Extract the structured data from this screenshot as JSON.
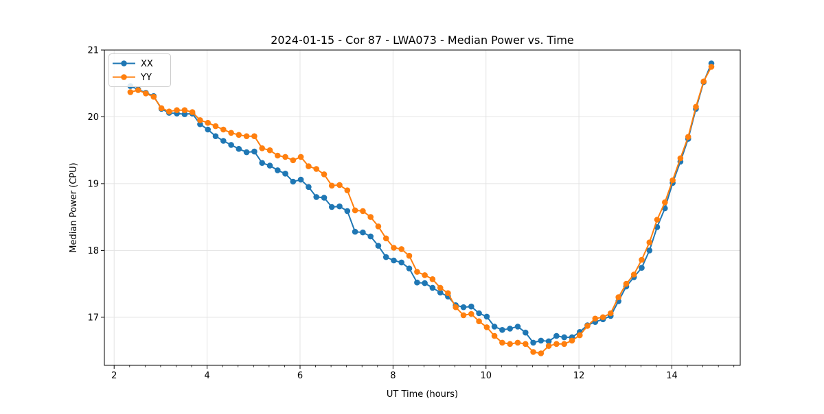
{
  "chart_data": {
    "type": "line",
    "title": "2024-01-15 - Cor 87 - LWA073 - Median Power vs. Time",
    "xlabel": "UT Time (hours)",
    "ylabel": "Median Power (CPU)",
    "xlim": [
      1.79,
      15.47
    ],
    "ylim": [
      16.28,
      21.0
    ],
    "x_ticks": [
      2,
      4,
      6,
      8,
      10,
      12,
      14
    ],
    "x_minor_step": 0.33333,
    "y_ticks": [
      17,
      18,
      19,
      20,
      21
    ],
    "grid": true,
    "grid_color": "#e3e3e3",
    "legend_position": "upper-left",
    "x": [
      2.35,
      2.517,
      2.683,
      2.85,
      3.017,
      3.183,
      3.35,
      3.517,
      3.683,
      3.85,
      4.017,
      4.183,
      4.35,
      4.517,
      4.683,
      4.85,
      5.017,
      5.183,
      5.35,
      5.517,
      5.683,
      5.85,
      6.017,
      6.183,
      6.35,
      6.517,
      6.683,
      6.85,
      7.017,
      7.183,
      7.35,
      7.517,
      7.683,
      7.85,
      8.017,
      8.183,
      8.35,
      8.517,
      8.683,
      8.85,
      9.017,
      9.183,
      9.35,
      9.517,
      9.683,
      9.85,
      10.017,
      10.183,
      10.35,
      10.517,
      10.683,
      10.85,
      11.017,
      11.183,
      11.35,
      11.517,
      11.683,
      11.85,
      12.017,
      12.183,
      12.35,
      12.517,
      12.683,
      12.85,
      13.017,
      13.183,
      13.35,
      13.517,
      13.683,
      13.85,
      14.017,
      14.183,
      14.35,
      14.517,
      14.683,
      14.85
    ],
    "series": [
      {
        "name": "XX",
        "color": "#1f77b4",
        "values": [
          20.46,
          20.41,
          20.36,
          20.31,
          20.12,
          20.06,
          20.05,
          20.04,
          20.05,
          19.89,
          19.81,
          19.71,
          19.64,
          19.58,
          19.52,
          19.47,
          19.48,
          19.31,
          19.27,
          19.2,
          19.15,
          19.03,
          19.06,
          18.95,
          18.8,
          18.79,
          18.65,
          18.66,
          18.59,
          18.28,
          18.27,
          18.21,
          18.07,
          17.9,
          17.85,
          17.82,
          17.73,
          17.52,
          17.51,
          17.44,
          17.37,
          17.31,
          17.18,
          17.15,
          17.16,
          17.06,
          17.01,
          16.86,
          16.81,
          16.83,
          16.86,
          16.77,
          16.62,
          16.65,
          16.64,
          16.72,
          16.7,
          16.7,
          16.78,
          16.88,
          16.93,
          16.97,
          17.02,
          17.24,
          17.46,
          17.6,
          17.74,
          18.0,
          18.35,
          18.63,
          19.01,
          19.33,
          19.67,
          20.12,
          20.52,
          20.8
        ]
      },
      {
        "name": "YY",
        "color": "#ff7f0e",
        "values": [
          20.37,
          20.4,
          20.35,
          20.3,
          20.13,
          20.08,
          20.1,
          20.1,
          20.07,
          19.95,
          19.91,
          19.86,
          19.81,
          19.76,
          19.73,
          19.71,
          19.71,
          19.53,
          19.5,
          19.42,
          19.4,
          19.35,
          19.4,
          19.26,
          19.22,
          19.14,
          18.97,
          18.98,
          18.9,
          18.6,
          18.59,
          18.5,
          18.36,
          18.18,
          18.04,
          18.02,
          17.92,
          17.68,
          17.63,
          17.57,
          17.44,
          17.36,
          17.15,
          17.03,
          17.05,
          16.94,
          16.85,
          16.72,
          16.62,
          16.6,
          16.62,
          16.6,
          16.48,
          16.46,
          16.57,
          16.6,
          16.6,
          16.65,
          16.73,
          16.87,
          16.98,
          17.0,
          17.06,
          17.3,
          17.5,
          17.64,
          17.86,
          18.12,
          18.46,
          18.72,
          19.05,
          19.38,
          19.7,
          20.15,
          20.53,
          20.75
        ]
      }
    ]
  }
}
